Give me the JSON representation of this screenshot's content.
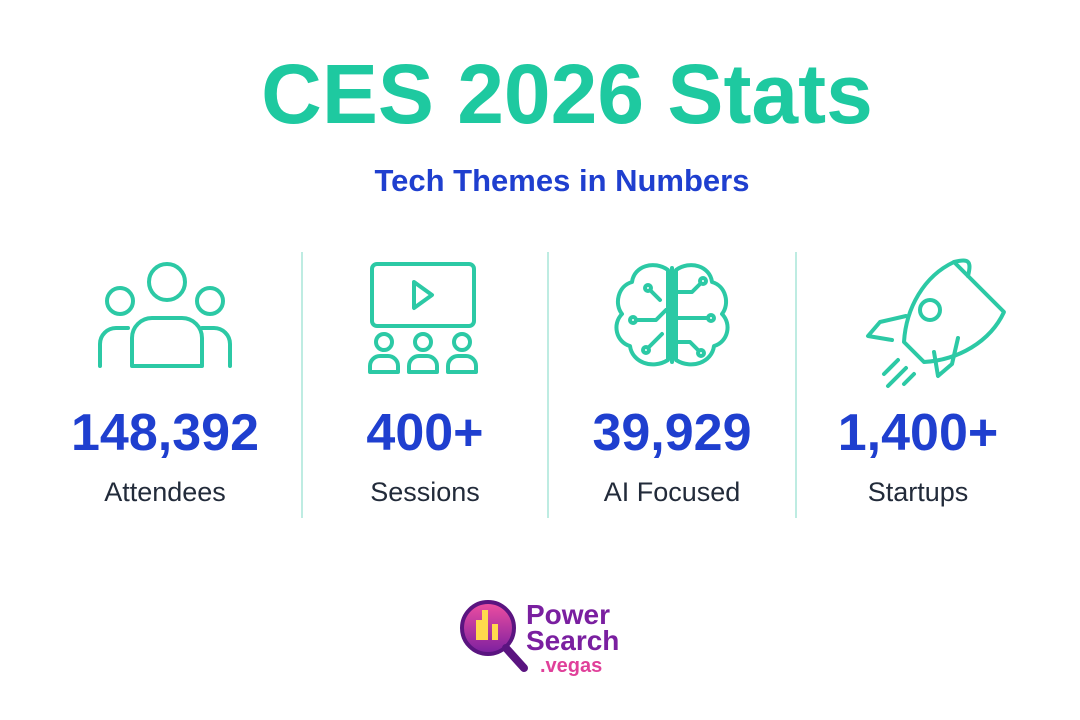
{
  "header": {
    "title": "CES 2026 Stats",
    "subtitle": "Tech Themes in Numbers"
  },
  "stats": [
    {
      "value": "148,392",
      "label": "Attendees"
    },
    {
      "value": "400+",
      "label": "Sessions"
    },
    {
      "value": "39,929",
      "label": "AI Focused"
    },
    {
      "value": "1,400+",
      "label": "Startups"
    }
  ],
  "logo": {
    "line1": "Power",
    "line2": "Search",
    "line3": ".vegas"
  }
}
